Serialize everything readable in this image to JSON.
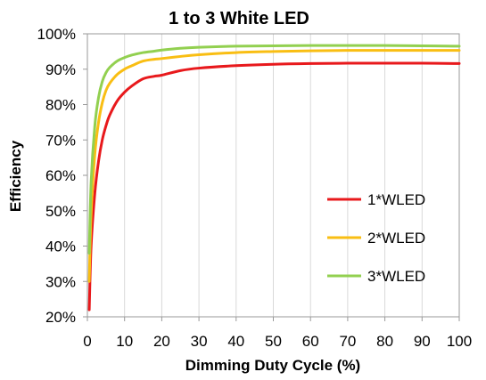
{
  "chart_data": {
    "type": "line",
    "title": "1 to 3 White LED",
    "xlabel": "Dimming Duty Cycle (%)",
    "ylabel": "Efficiency",
    "xlim": [
      0,
      100
    ],
    "ylim": [
      20,
      100
    ],
    "xticks": [
      "0",
      "10",
      "20",
      "30",
      "40",
      "50",
      "60",
      "70",
      "80",
      "90",
      "100"
    ],
    "yticks": [
      "20%",
      "30%",
      "40%",
      "50%",
      "60%",
      "70%",
      "80%",
      "90%",
      "100%"
    ],
    "grid": "vertical",
    "legend_position": "right",
    "series": [
      {
        "name": "1*WLED",
        "color": "#e8191c",
        "x": [
          0.5,
          1,
          2,
          3,
          4,
          5,
          6,
          8,
          10,
          12,
          15,
          18,
          20,
          25,
          30,
          40,
          50,
          60,
          70,
          80,
          90,
          100
        ],
        "y": [
          22,
          40,
          55,
          64,
          70,
          74,
          77,
          81,
          83.5,
          85.3,
          87.3,
          88,
          88.3,
          89.6,
          90.3,
          91,
          91.4,
          91.6,
          91.7,
          91.7,
          91.7,
          91.6
        ]
      },
      {
        "name": "2*WLED",
        "color": "#f9be13",
        "x": [
          0.5,
          1,
          2,
          3,
          4,
          5,
          6,
          8,
          10,
          12,
          15,
          18,
          20,
          25,
          30,
          40,
          50,
          60,
          70,
          80,
          90,
          100
        ],
        "y": [
          30,
          49,
          66,
          75,
          80.5,
          84,
          86,
          88.5,
          90,
          91,
          92.3,
          92.8,
          93,
          93.6,
          94.1,
          94.7,
          95,
          95.2,
          95.3,
          95.3,
          95.3,
          95.3
        ]
      },
      {
        "name": "3*WLED",
        "color": "#92d050",
        "x": [
          0.5,
          1,
          2,
          3,
          4,
          5,
          6,
          8,
          10,
          12,
          15,
          18,
          20,
          25,
          30,
          40,
          50,
          60,
          70,
          80,
          90,
          100
        ],
        "y": [
          38,
          58,
          74,
          82,
          86.5,
          89,
          90.5,
          92.3,
          93.3,
          94,
          94.7,
          95.1,
          95.4,
          95.9,
          96.2,
          96.5,
          96.6,
          96.7,
          96.7,
          96.7,
          96.6,
          96.5
        ]
      }
    ]
  }
}
